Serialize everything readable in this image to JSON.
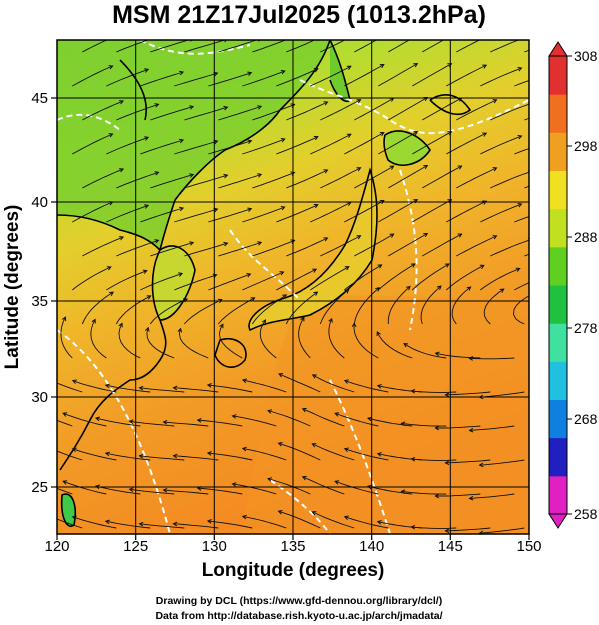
{
  "title": "MSM 21Z17Jul2025 (1013.2hPa)",
  "x_axis": {
    "label": "Longitude (degrees)",
    "ticks": [
      120,
      125,
      130,
      135,
      140,
      145,
      150
    ]
  },
  "y_axis": {
    "label": "Latitude  (degrees)",
    "ticks": [
      25,
      30,
      35,
      40,
      45
    ]
  },
  "colorbar": {
    "ticks": [
      "308",
      "298",
      "288",
      "278",
      "268",
      "258"
    ],
    "range": [
      258,
      308
    ],
    "colors": [
      "#e020c0",
      "#2020c0",
      "#1080e0",
      "#20c0e0",
      "#40e0a0",
      "#20c040",
      "#60d020",
      "#c0e020",
      "#f0e020",
      "#f0a020",
      "#f07020",
      "#e03030"
    ]
  },
  "credits": [
    "Drawing by DCL (https://www.gfd-dennou.org/library/dcl/)",
    "Data from http://database.rish.kyoto-u.ac.jp/arch/jmadata/"
  ],
  "chart_data": {
    "type": "heatmap",
    "title": "MSM 21Z17Jul2025 (1013.2hPa)",
    "xlabel": "Longitude (degrees)",
    "ylabel": "Latitude  (degrees)",
    "xlim": [
      120,
      150
    ],
    "ylim": [
      22.4,
      47.6
    ],
    "color_range": [
      258,
      308
    ],
    "grid": true
  }
}
